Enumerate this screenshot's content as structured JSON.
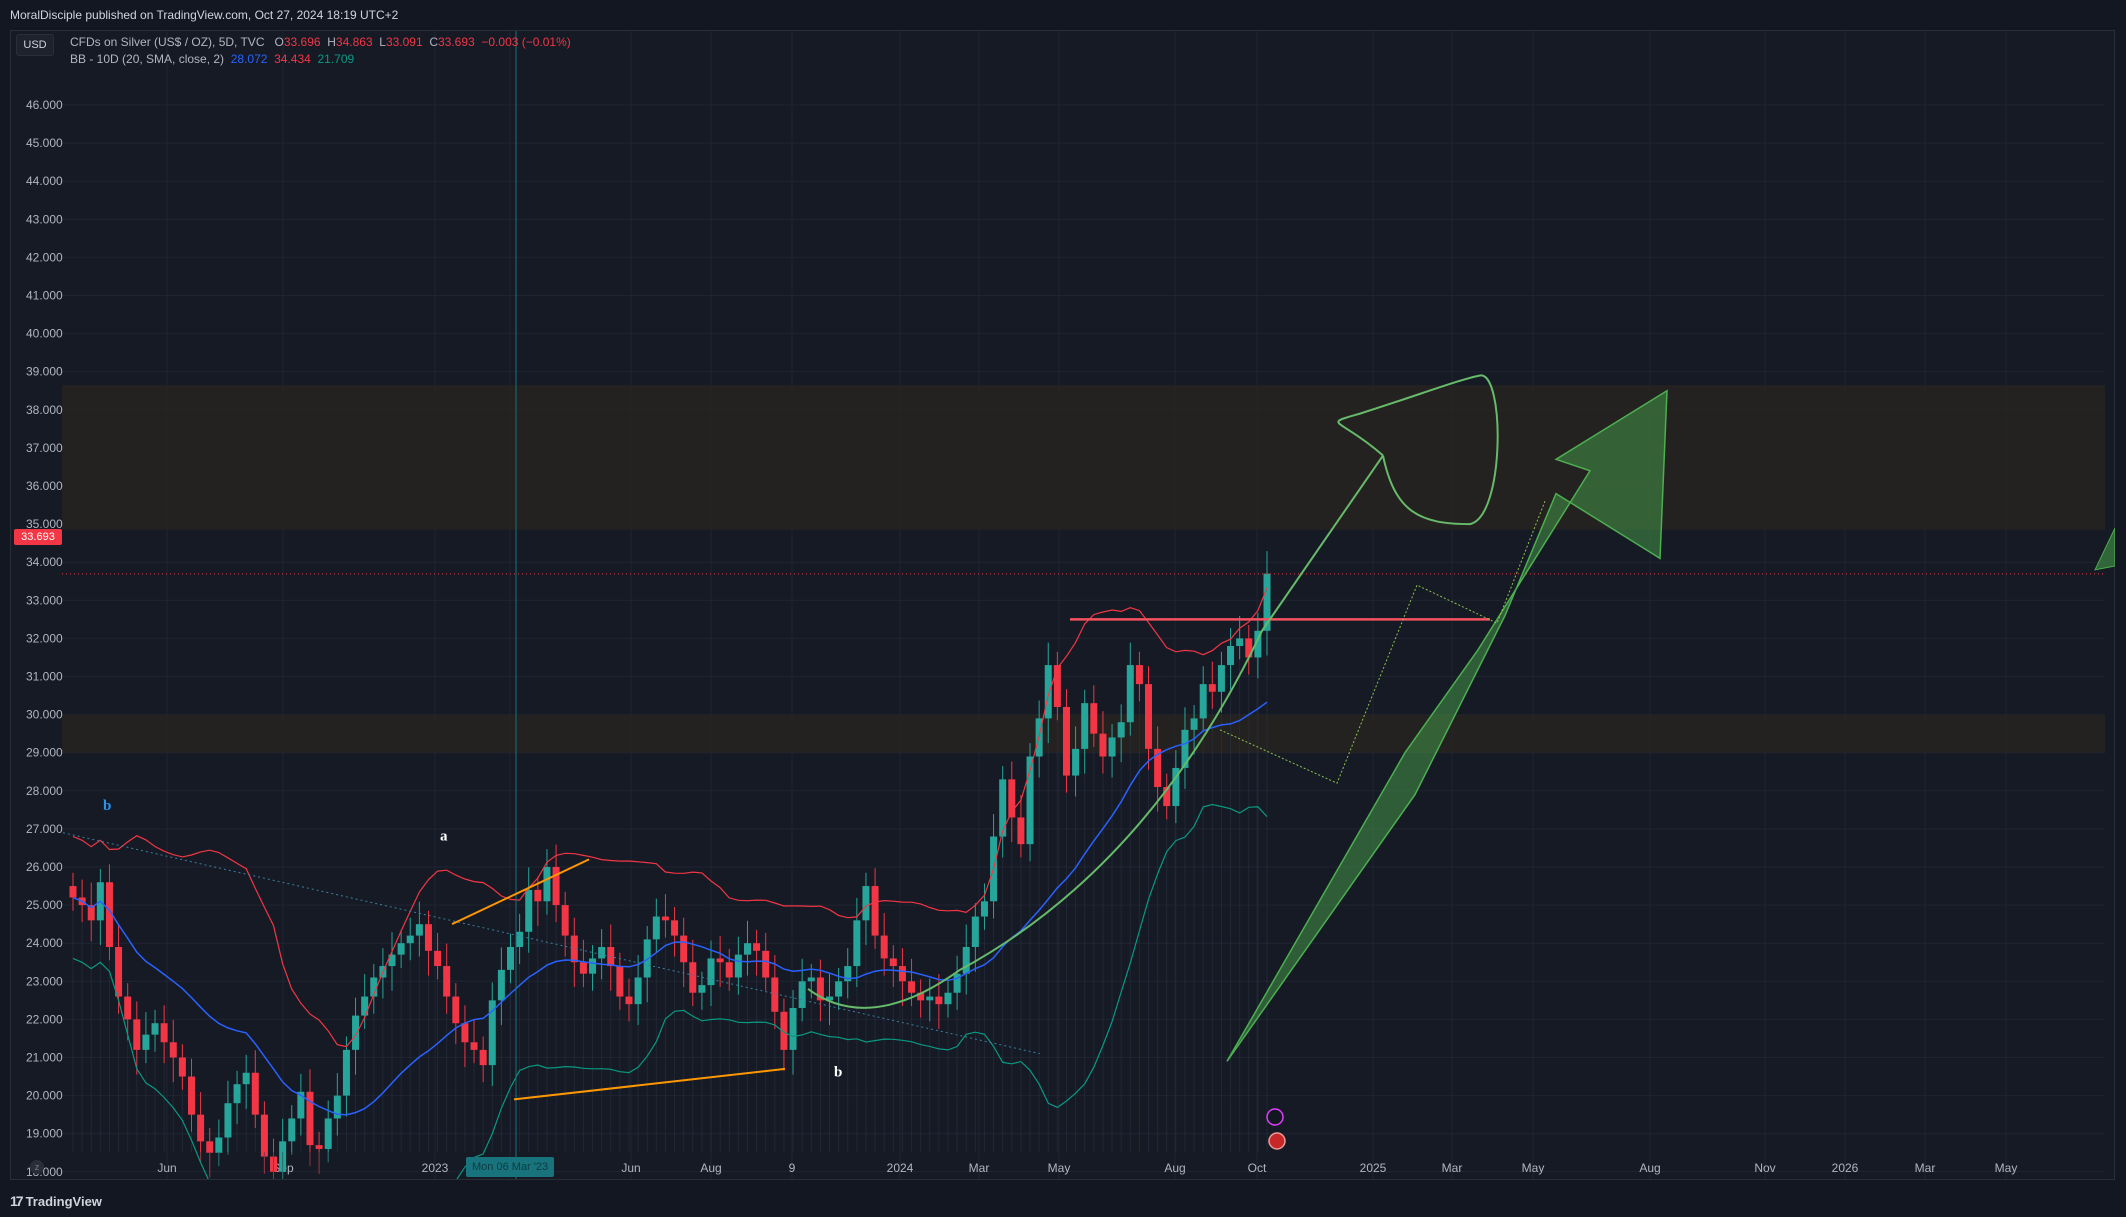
{
  "header": {
    "publish_text": "MoralDisciple published on TradingView.com, Oct 27, 2024 18:19 UTC+2"
  },
  "toolbar": {
    "currency_label": "USD"
  },
  "legend": {
    "symbol": "CFDs on Silver (US$ / OZ), 5D, TVC",
    "o_label": "O",
    "o_value": "33.696",
    "h_label": "H",
    "h_value": "34.863",
    "l_label": "L",
    "l_value": "33.091",
    "c_label": "C",
    "c_value": "33.693",
    "change": "−0.003 (−0.01%)",
    "bb_label": "BB - 10D (20, SMA, close, 2)",
    "bb_basis": "28.072",
    "bb_upper": "34.434",
    "bb_lower": "21.709"
  },
  "price_tag": "33.693",
  "date_tag": "Mon 06 Mar '23",
  "footer": {
    "brand": "TradingView"
  },
  "colors": {
    "up": "#26a69a",
    "down": "#f23645",
    "bb_basis": "#2962ff",
    "bb_upper": "#f23645",
    "bb_lower": "#089981",
    "arrow": "#4caf50",
    "trend_orange": "#ff9800",
    "resistance": "#f7525f"
  },
  "chart_data": {
    "type": "candlestick",
    "title": "CFDs on Silver (US$ / OZ), 5D, TVC",
    "currency": "USD",
    "ylim": [
      17.5,
      46.3
    ],
    "y_ticks": [
      "46.000",
      "45.000",
      "44.000",
      "43.000",
      "42.000",
      "41.000",
      "40.000",
      "39.000",
      "38.000",
      "37.000",
      "36.000",
      "35.000",
      "34.000",
      "33.000",
      "32.000",
      "31.000",
      "30.000",
      "29.000",
      "28.000",
      "27.000",
      "26.000",
      "25.000",
      "24.000",
      "23.000",
      "22.000",
      "21.000",
      "20.000",
      "19.000",
      "18.000"
    ],
    "x_ticks": [
      "Jun",
      "Sep",
      "2023",
      "Mar '23",
      "Jun",
      "Aug",
      "9",
      "2024",
      "Mar",
      "May",
      "Aug",
      "Oct",
      "2025",
      "Mar",
      "May",
      "Aug",
      "Nov",
      "2026",
      "Mar",
      "May"
    ],
    "last_price": 33.693,
    "annotations": [
      "a",
      "b",
      "b"
    ],
    "resistance_level": 32.5,
    "zones": [
      [
        34.85,
        38.65
      ],
      [
        29.0,
        30.0
      ]
    ],
    "close_series": [
      25.2,
      25.0,
      24.6,
      25.6,
      23.9,
      22.6,
      22.0,
      21.2,
      21.6,
      21.9,
      21.4,
      21.0,
      20.5,
      19.5,
      18.8,
      18.5,
      18.9,
      19.8,
      20.3,
      20.6,
      19.5,
      18.4,
      18.0,
      18.8,
      19.4,
      20.1,
      18.7,
      18.6,
      19.4,
      20.0,
      21.2,
      22.1,
      22.6,
      23.1,
      23.4,
      23.7,
      24.0,
      24.2,
      24.5,
      23.8,
      23.4,
      22.6,
      21.9,
      21.4,
      21.2,
      20.8,
      22.5,
      23.3,
      23.9,
      24.3,
      25.4,
      25.1,
      26.0,
      25.0,
      24.2,
      23.5,
      23.2,
      23.6,
      23.9,
      23.4,
      22.6,
      22.4,
      23.1,
      24.1,
      24.7,
      24.6,
      24.2,
      23.5,
      22.7,
      22.9,
      23.6,
      23.5,
      23.1,
      23.7,
      24.0,
      23.8,
      23.1,
      22.2,
      21.2,
      22.3,
      23.0,
      23.1,
      22.5,
      22.6,
      23.0,
      23.4,
      24.6,
      25.5,
      24.2,
      23.6,
      23.4,
      23.0,
      22.7,
      22.5,
      22.6,
      22.4,
      22.7,
      23.2,
      23.9,
      24.7,
      25.1,
      26.8,
      28.3,
      27.3,
      26.6,
      28.9,
      29.9,
      31.3,
      30.2,
      28.4,
      29.1,
      30.3,
      29.5,
      28.9,
      29.4,
      29.8,
      31.3,
      30.8,
      29.1,
      28.1,
      27.6,
      28.6,
      29.6,
      29.9,
      30.8,
      30.6,
      31.3,
      31.8,
      32.0,
      31.5,
      32.2,
      33.7
    ],
    "series": [
      {
        "name": "Price",
        "type": "candlestick"
      },
      {
        "name": "BB basis",
        "last": 28.072
      },
      {
        "name": "BB upper",
        "last": 34.434
      },
      {
        "name": "BB lower",
        "last": 21.709
      }
    ]
  }
}
